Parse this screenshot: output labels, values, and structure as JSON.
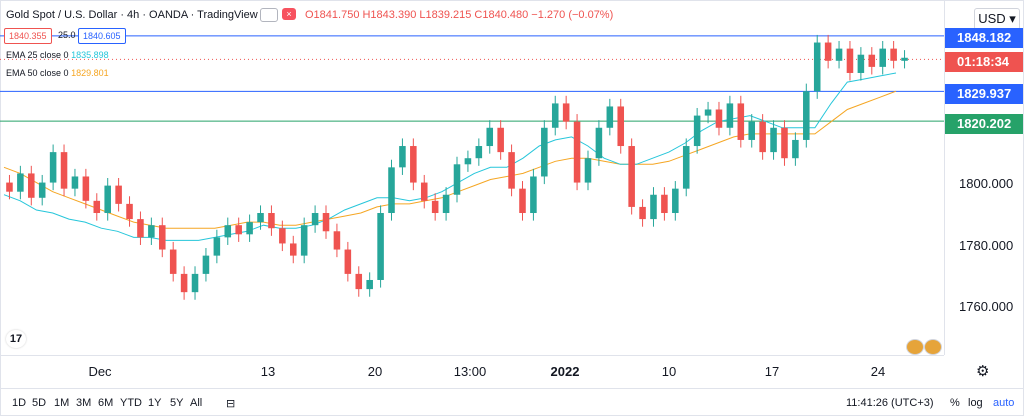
{
  "header": {
    "symbol_title": "Gold Spot / U.S. Dollar · 4h · OANDA · TradingView",
    "ohlc": "O1841.750 H1843.390 L1839.215 C1840.480 −1.270 (−0.07%)",
    "sell_price": "1840.355",
    "spread": "25.0",
    "buy_price": "1840.605",
    "ema25_label": "EMA 25 close 0",
    "ema25_value": "1835.898",
    "ema50_label": "EMA 50 close 0",
    "ema50_value": "1829.801",
    "close_icon": "×"
  },
  "price_axis": {
    "currency": "USD",
    "currency_icon": "chevron-down-icon",
    "levels": [
      "1800.000",
      "1780.000",
      "1760.000"
    ],
    "tags": [
      {
        "text": "1848.182",
        "color": "#2962ff"
      },
      {
        "text": "01:18:34",
        "color": "#ef5350"
      },
      {
        "text": "1829.937",
        "color": "#2962ff"
      },
      {
        "text": "1820.202",
        "color": "#26a269"
      }
    ]
  },
  "time_axis": {
    "labels": [
      "Dec",
      "13",
      "20",
      "13:00",
      "2022",
      "10",
      "17",
      "24"
    ]
  },
  "toolbar": {
    "ranges": [
      "1D",
      "5D",
      "1M",
      "3M",
      "6M",
      "YTD",
      "1Y",
      "5Y",
      "All"
    ],
    "clock": "11:41:26 (UTC+3)",
    "percent": "%",
    "log": "log",
    "auto": "auto"
  },
  "colors": {
    "up": "#26a69a",
    "down": "#ef5350",
    "ema25": "#26c6da",
    "ema50": "#f5a623"
  },
  "chart_data": {
    "type": "candlestick",
    "ylim": [
      1745,
      1858
    ],
    "horizontal_lines": [
      1848.182,
      1829.937,
      1820.202
    ],
    "last_price_dotted": 1840.48,
    "ema25": [
      1796,
      1794,
      1791,
      1790,
      1788,
      1787,
      1785,
      1784,
      1782,
      1782,
      1781,
      1781,
      1781,
      1782,
      1783,
      1784,
      1786,
      1785,
      1785,
      1786,
      1788,
      1791,
      1793,
      1795,
      1795,
      1794,
      1795,
      1797,
      1800,
      1803,
      1805,
      1805,
      1808,
      1812,
      1814,
      1815,
      1812,
      1808,
      1806,
      1806,
      1808,
      1810,
      1813,
      1817,
      1820,
      1821,
      1822,
      1820,
      1818,
      1818,
      1818,
      1826,
      1833,
      1834,
      1835,
      1836
    ],
    "ema50": [
      1805,
      1803,
      1800,
      1797,
      1795,
      1793,
      1791,
      1789,
      1787,
      1786,
      1785,
      1785,
      1785,
      1785,
      1786,
      1787,
      1787,
      1786,
      1786,
      1787,
      1788,
      1789,
      1790,
      1792,
      1793,
      1793,
      1794,
      1795,
      1797,
      1799,
      1801,
      1802,
      1803,
      1805,
      1807,
      1808,
      1808,
      1807,
      1806,
      1806,
      1806,
      1807,
      1809,
      1811,
      1813,
      1815,
      1816,
      1816,
      1816,
      1816,
      1816,
      1820,
      1824,
      1826,
      1828,
      1830
    ],
    "candles": [
      [
        1800,
        1797
      ],
      [
        1797,
        1803
      ],
      [
        1803,
        1795
      ],
      [
        1795,
        1800
      ],
      [
        1800,
        1810
      ],
      [
        1810,
        1798
      ],
      [
        1798,
        1802
      ],
      [
        1802,
        1794
      ],
      [
        1794,
        1790
      ],
      [
        1790,
        1799
      ],
      [
        1799,
        1793
      ],
      [
        1793,
        1788
      ],
      [
        1788,
        1782
      ],
      [
        1782,
        1786
      ],
      [
        1786,
        1778
      ],
      [
        1778,
        1770
      ],
      [
        1770,
        1764
      ],
      [
        1764,
        1770
      ],
      [
        1770,
        1776
      ],
      [
        1776,
        1782
      ],
      [
        1782,
        1786
      ],
      [
        1786,
        1783
      ],
      [
        1783,
        1787
      ],
      [
        1787,
        1790
      ],
      [
        1790,
        1785
      ],
      [
        1785,
        1780
      ],
      [
        1780,
        1776
      ],
      [
        1776,
        1786
      ],
      [
        1786,
        1790
      ],
      [
        1790,
        1784
      ],
      [
        1784,
        1778
      ],
      [
        1778,
        1770
      ],
      [
        1770,
        1765
      ],
      [
        1765,
        1768
      ],
      [
        1768,
        1790
      ],
      [
        1790,
        1805
      ],
      [
        1805,
        1812
      ],
      [
        1812,
        1800
      ],
      [
        1800,
        1794
      ],
      [
        1794,
        1790
      ],
      [
        1790,
        1796
      ],
      [
        1796,
        1806
      ],
      [
        1806,
        1808
      ],
      [
        1808,
        1812
      ],
      [
        1812,
        1818
      ],
      [
        1818,
        1810
      ],
      [
        1810,
        1798
      ],
      [
        1798,
        1790
      ],
      [
        1790,
        1802
      ],
      [
        1802,
        1818
      ],
      [
        1818,
        1826
      ],
      [
        1826,
        1820
      ],
      [
        1820,
        1800
      ],
      [
        1800,
        1808
      ],
      [
        1808,
        1818
      ],
      [
        1818,
        1825
      ],
      [
        1825,
        1812
      ],
      [
        1812,
        1792
      ],
      [
        1792,
        1788
      ],
      [
        1788,
        1796
      ],
      [
        1796,
        1790
      ],
      [
        1790,
        1798
      ],
      [
        1798,
        1812
      ],
      [
        1812,
        1822
      ],
      [
        1822,
        1824
      ],
      [
        1824,
        1818
      ],
      [
        1818,
        1826
      ],
      [
        1826,
        1814
      ],
      [
        1814,
        1820
      ],
      [
        1820,
        1810
      ],
      [
        1810,
        1818
      ],
      [
        1818,
        1808
      ],
      [
        1808,
        1814
      ],
      [
        1814,
        1830
      ],
      [
        1830,
        1846
      ],
      [
        1846,
        1840
      ],
      [
        1840,
        1844
      ],
      [
        1844,
        1836
      ],
      [
        1836,
        1842
      ],
      [
        1842,
        1838
      ],
      [
        1838,
        1844
      ],
      [
        1844,
        1840
      ],
      [
        1840,
        1841
      ]
    ]
  }
}
